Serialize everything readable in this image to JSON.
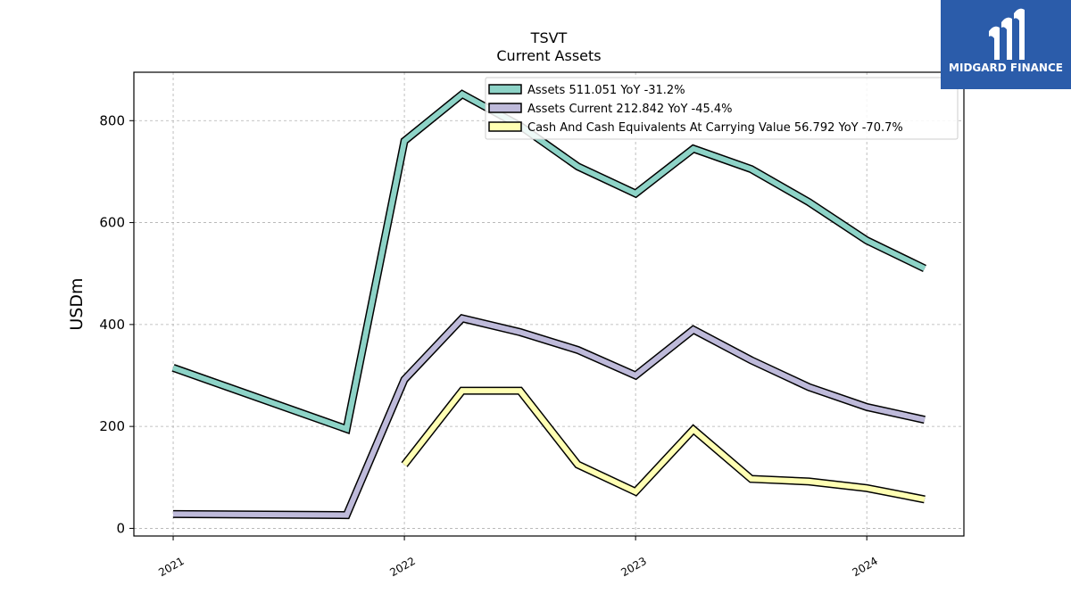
{
  "chart_data": {
    "type": "line",
    "title": "TSVT",
    "subtitle": "Current  Assets",
    "xlabel": "",
    "ylabel": "USDm",
    "ylim": [
      -15,
      895
    ],
    "xlim": [
      2020.83,
      2024.42
    ],
    "yticks": [
      0,
      200,
      400,
      600,
      800
    ],
    "ytick_labels": [
      "0",
      "200",
      "400",
      "600",
      "800"
    ],
    "xticks": [
      2021,
      2022,
      2023,
      2024
    ],
    "xtick_labels": [
      "2021",
      "2022",
      "2023",
      "2024"
    ],
    "grid": true,
    "legend_position": "top-right",
    "series": [
      {
        "name": "Assets  511.051 YoY -31.2%",
        "color": "#8dd3c7",
        "x": [
          2021.0,
          2021.75,
          2022.0,
          2022.25,
          2022.5,
          2022.75,
          2023.0,
          2023.25,
          2023.5,
          2023.75,
          2024.0,
          2024.25
        ],
        "values": [
          315,
          195,
          760,
          852,
          790,
          710,
          657,
          745,
          705,
          640,
          565,
          510
        ]
      },
      {
        "name": "Assets Current  212.842 YoY -45.4%",
        "color": "#bebada",
        "x": [
          2021.0,
          2021.75,
          2022.0,
          2022.25,
          2022.5,
          2022.75,
          2023.0,
          2023.25,
          2023.5,
          2023.75,
          2024.0,
          2024.25
        ],
        "values": [
          28,
          26,
          292,
          412,
          385,
          350,
          300,
          390,
          330,
          277,
          238,
          213
        ]
      },
      {
        "name": "Cash And Cash Equivalents At Carrying Value  56.792 YoY -70.7%",
        "color": "#ffffb3",
        "x": [
          2022.0,
          2022.25,
          2022.5,
          2022.75,
          2023.0,
          2023.25,
          2023.5,
          2023.75,
          2024.0,
          2024.25
        ],
        "values": [
          125,
          270,
          270,
          125,
          72,
          194,
          97,
          92,
          79,
          57
        ]
      }
    ]
  },
  "logo": {
    "text": "MIDGARD FINANCE",
    "background": "#2b5caa"
  }
}
